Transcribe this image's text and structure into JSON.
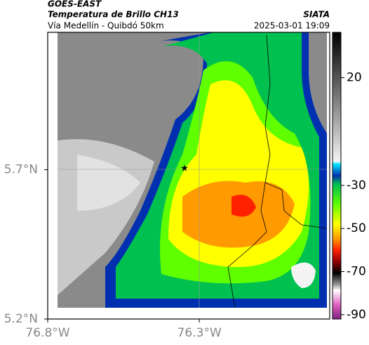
{
  "header": {
    "satellite": "GOES-EAST",
    "product": "Temperatura de Brillo CH13",
    "route": "Vía Medellín - Quibdó 50km",
    "agency": "SIATA",
    "timestamp": "2025-03-01 19:09"
  },
  "map": {
    "xlim": [
      -76.8,
      -75.87
    ],
    "ylim": [
      5.2,
      6.16
    ],
    "xticks": [
      {
        "value": -76.8,
        "label": "76.8°W"
      },
      {
        "value": -76.3,
        "label": "76.3°W"
      }
    ],
    "yticks": [
      {
        "value": 5.7,
        "label": "5.7°N"
      },
      {
        "value": 5.2,
        "label": "5.2°N"
      }
    ]
  },
  "colorbar": {
    "lim": [
      -92,
      41
    ],
    "ticks": [
      20,
      -30,
      -50,
      -70,
      -90
    ]
  }
}
